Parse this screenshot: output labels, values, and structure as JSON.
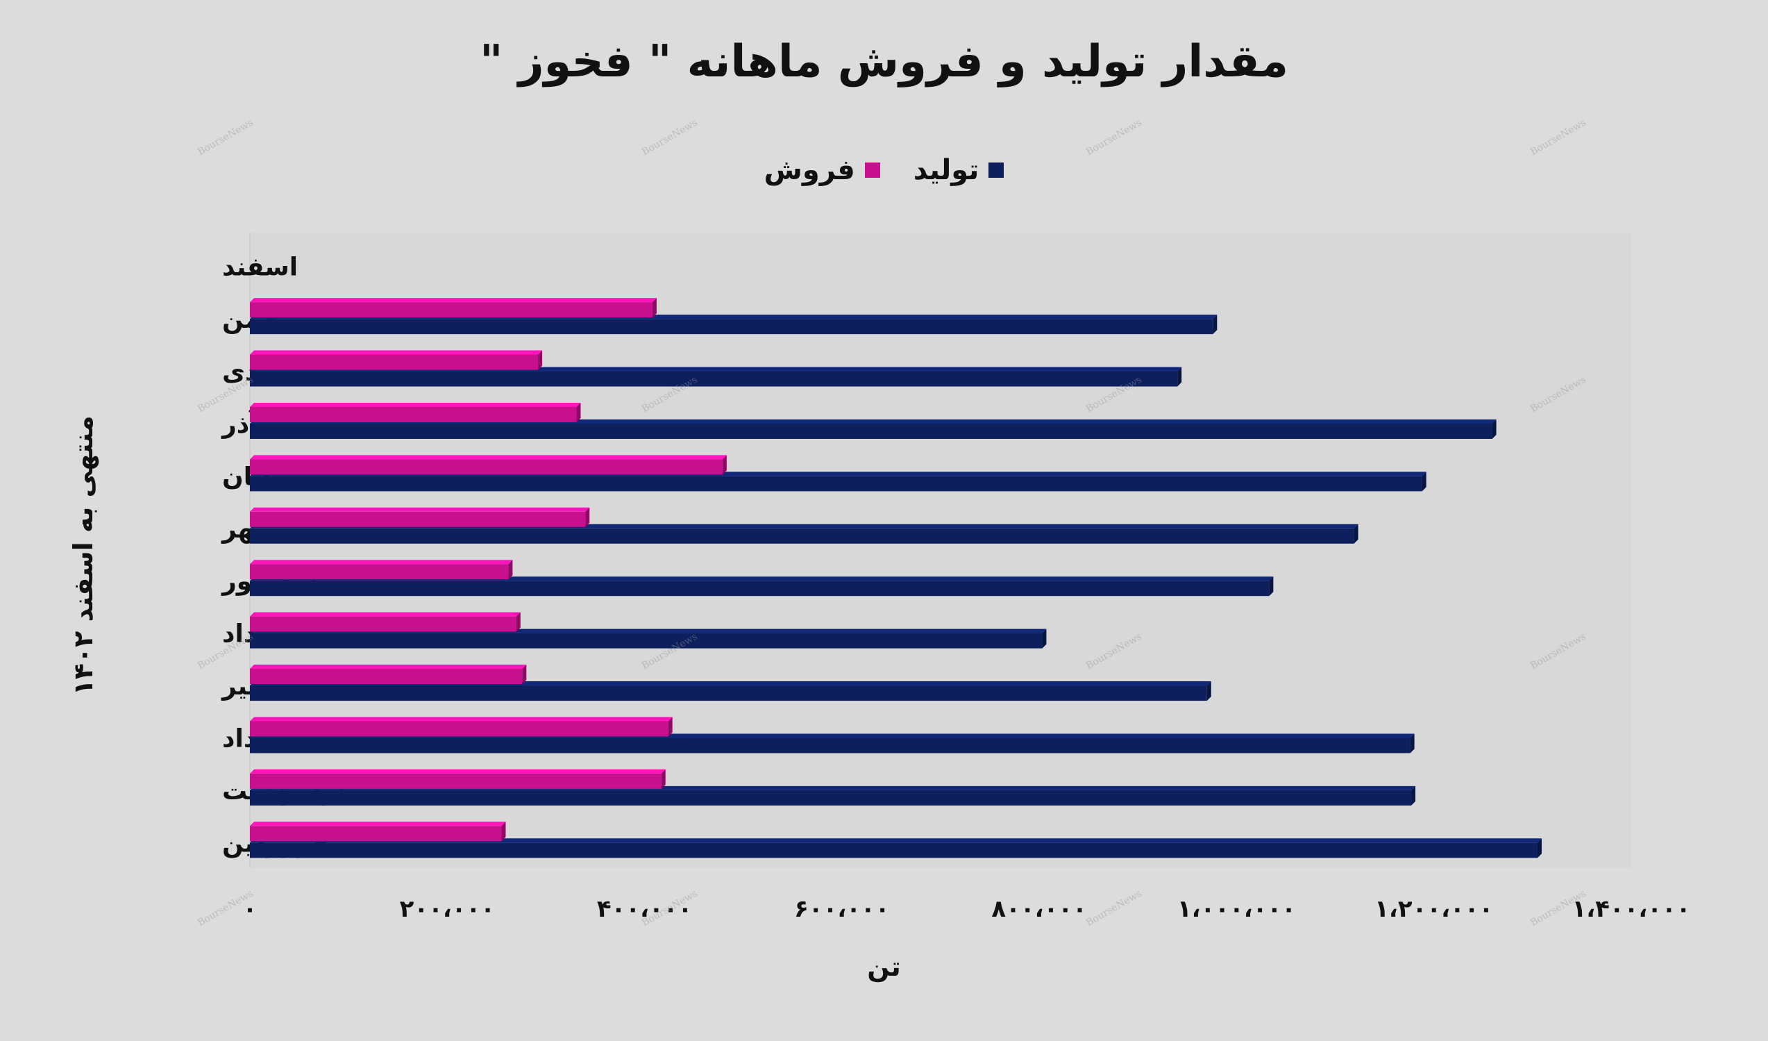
{
  "watermark": "BourseNews",
  "chart_data": {
    "type": "bar",
    "orientation": "horizontal",
    "title": "مقدار تولید و فروش ماهانه \" فخوز \"",
    "xlabel": "تن",
    "ylabel": "منتهی به اسفند ۱۴۰۲",
    "categories": [
      "فروردین",
      "اردیبهشت",
      "خرداد",
      "تیر",
      "مرداد",
      "شهریور",
      "مهر",
      "آبان",
      "آذر",
      "دی",
      "بهمن",
      "اسفند"
    ],
    "series": [
      {
        "name": "تولید",
        "color": "#0d1f5c",
        "values": [
          1305000,
          1177000,
          1176000,
          970000,
          803000,
          1033000,
          1119000,
          1188000,
          1259000,
          940000,
          976000,
          null
        ]
      },
      {
        "name": "فروش",
        "color": "#c8108f",
        "values": [
          255000,
          417000,
          424000,
          276000,
          270000,
          262000,
          340000,
          479000,
          331000,
          292000,
          408000,
          null
        ]
      }
    ],
    "xlim": [
      0,
      1400000
    ],
    "xticks": [
      0,
      200000,
      400000,
      600000,
      800000,
      1000000,
      1200000,
      1400000
    ],
    "xtick_labels": [
      "۰",
      "۲۰۰،۰۰۰",
      "۴۰۰،۰۰۰",
      "۶۰۰،۰۰۰",
      "۸۰۰،۰۰۰",
      "۱،۰۰۰،۰۰۰",
      "۱،۲۰۰،۰۰۰",
      "۱،۴۰۰،۰۰۰"
    ],
    "legend": "top-center",
    "grid": false
  }
}
